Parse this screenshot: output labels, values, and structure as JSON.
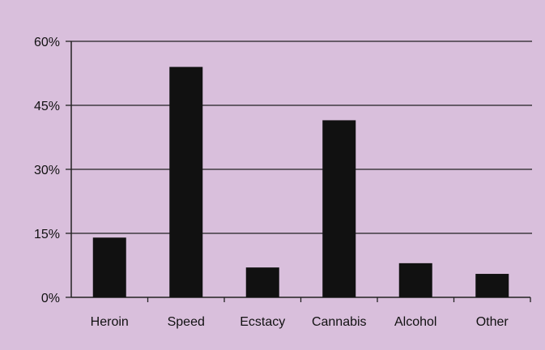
{
  "chart_data": {
    "type": "bar",
    "categories": [
      "Heroin",
      "Speed",
      "Ecstacy",
      "Cannabis",
      "Alcohol",
      "Other"
    ],
    "values": [
      14,
      54,
      7,
      41.5,
      8,
      5.5
    ],
    "yticks": [
      "0%",
      "15%",
      "30%",
      "45%",
      "60%"
    ],
    "ytick_values": [
      0,
      15,
      30,
      45,
      60
    ],
    "ylim": [
      0,
      60
    ],
    "grid": true,
    "legend": "none",
    "title": "",
    "xlabel": "",
    "ylabel": "",
    "colors": {
      "background": "#d9bfdc",
      "bar": "#111111",
      "grid": "#222222"
    }
  }
}
